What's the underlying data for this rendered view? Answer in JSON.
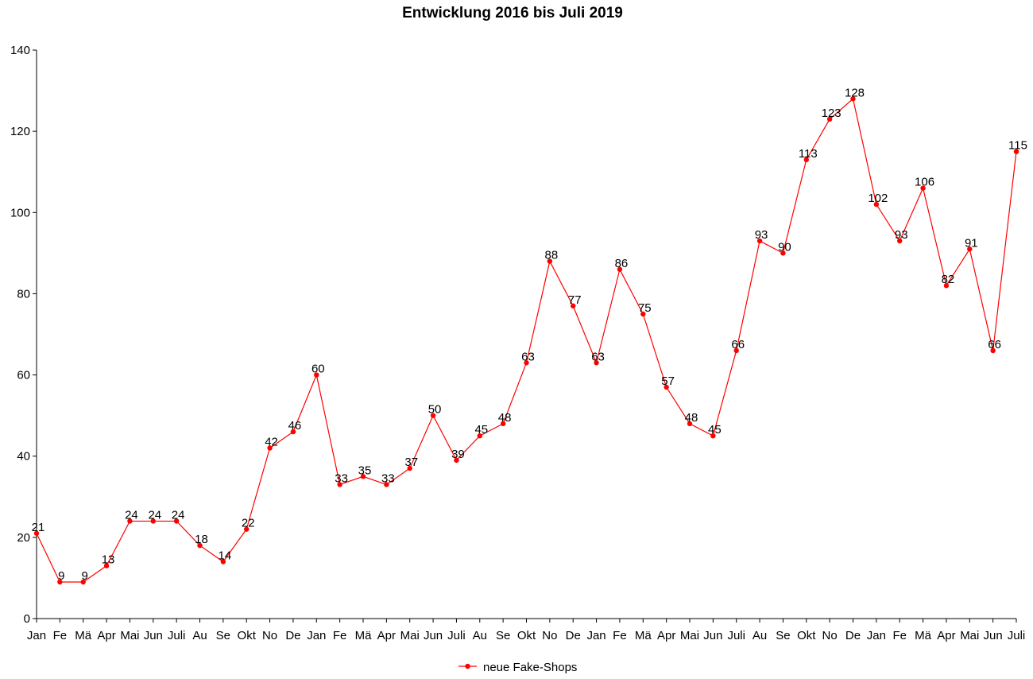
{
  "chart_data": {
    "type": "line",
    "title": "Entwicklung 2016 bis Juli 2019",
    "xlabel": "",
    "ylabel": "",
    "ylim": [
      0,
      140
    ],
    "yticks": [
      0,
      20,
      40,
      60,
      80,
      100,
      120,
      140
    ],
    "grid": false,
    "legend_position": "bottom",
    "series_color": "#ff0000",
    "categories": [
      "Jan",
      "Fe",
      "Mä",
      "Apr",
      "Mai",
      "Jun",
      "Juli",
      "Au",
      "Se",
      "Okt",
      "No",
      "De",
      "Jan",
      "Fe",
      "Mä",
      "Apr",
      "Mai",
      "Jun",
      "Juli",
      "Au",
      "Se",
      "Okt",
      "No",
      "De",
      "Jan",
      "Fe",
      "Mä",
      "Apr",
      "Mai",
      "Jun",
      "Juli",
      "Au",
      "Se",
      "Okt",
      "No",
      "De",
      "Jan",
      "Fe",
      "Mä",
      "Apr",
      "Mai",
      "Jun",
      "Juli"
    ],
    "series": [
      {
        "name": "neue Fake-Shops",
        "values": [
          21,
          9,
          9,
          13,
          24,
          24,
          24,
          18,
          14,
          22,
          42,
          46,
          60,
          33,
          35,
          33,
          37,
          50,
          39,
          45,
          48,
          63,
          88,
          77,
          63,
          86,
          75,
          57,
          48,
          45,
          66,
          93,
          90,
          113,
          123,
          128,
          102,
          93,
          106,
          82,
          91,
          66,
          115
        ]
      }
    ]
  }
}
